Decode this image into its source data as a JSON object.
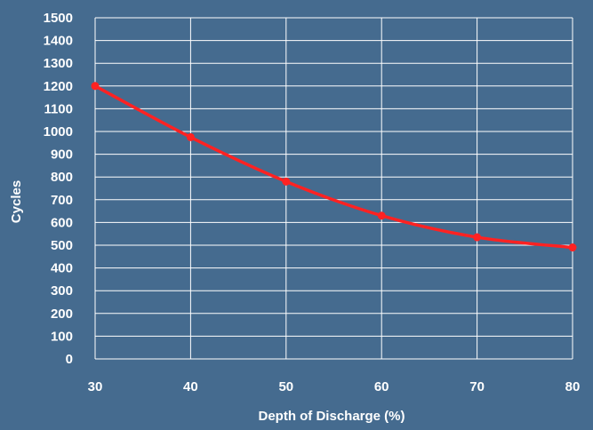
{
  "colors": {
    "background": "#456b8f",
    "grid": "#ffffff",
    "text": "#ffffff",
    "series": "#ff2222"
  },
  "chart_data": {
    "type": "line",
    "title": "",
    "xlabel": "Depth of Discharge (%)",
    "ylabel": "Cycles",
    "xlim": [
      30,
      80
    ],
    "ylim": [
      0,
      1500
    ],
    "x_ticks": [
      30,
      40,
      50,
      60,
      70,
      80
    ],
    "y_ticks": [
      0,
      100,
      200,
      300,
      400,
      500,
      600,
      700,
      800,
      900,
      1000,
      1100,
      1200,
      1300,
      1400,
      1500
    ],
    "grid": true,
    "legend": "none",
    "series": [
      {
        "x": [
          30,
          40,
          50,
          60,
          70,
          80
        ],
        "y": [
          1200,
          975,
          780,
          630,
          535,
          490
        ]
      }
    ]
  }
}
